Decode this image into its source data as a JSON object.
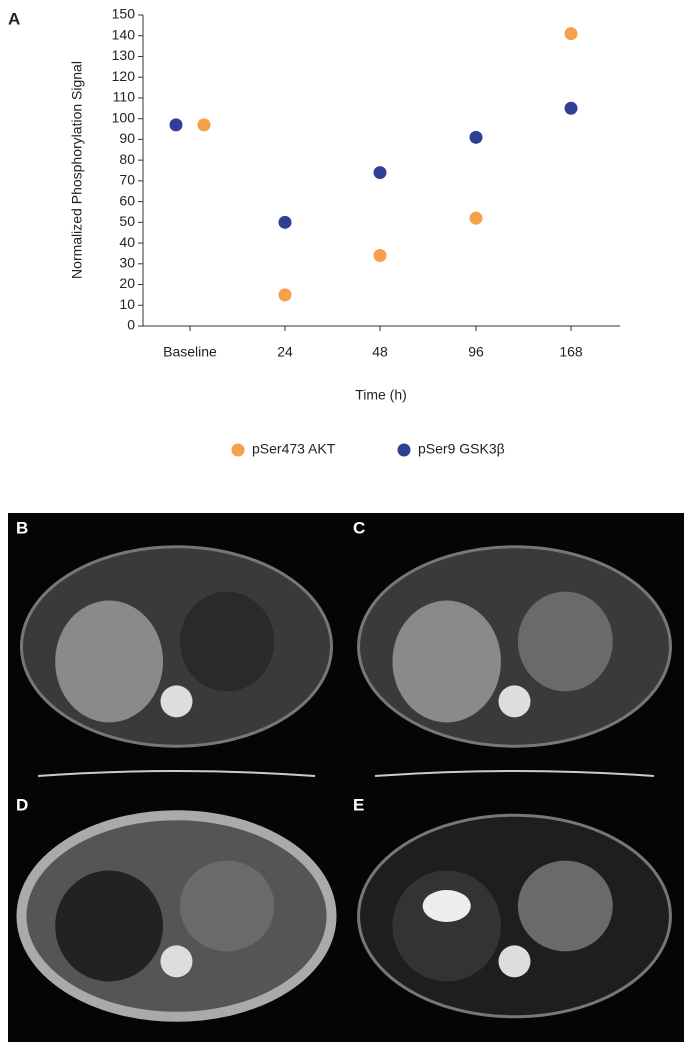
{
  "chart_data": {
    "type": "scatter",
    "panel_label": "A",
    "y_label": "Normalized Phosphorylation Signal",
    "x_label": "Time (h)",
    "categories": [
      "Baseline",
      "24",
      "48",
      "96",
      "168"
    ],
    "series": [
      {
        "name": "pSer473 AKT",
        "color": "#f5a04a",
        "values": [
          97,
          15,
          34,
          52,
          141
        ]
      },
      {
        "name": "pSer9 GSK3β",
        "color": "#2f3f93",
        "values": [
          97,
          50,
          74,
          91,
          105
        ]
      }
    ],
    "ylim": [
      0,
      150
    ],
    "yticks": [
      0,
      10,
      20,
      30,
      40,
      50,
      60,
      70,
      80,
      90,
      100,
      110,
      120,
      130,
      140,
      150
    ]
  },
  "image_panels": [
    {
      "label": "B"
    },
    {
      "label": "C"
    },
    {
      "label": "D"
    },
    {
      "label": "E"
    }
  ]
}
